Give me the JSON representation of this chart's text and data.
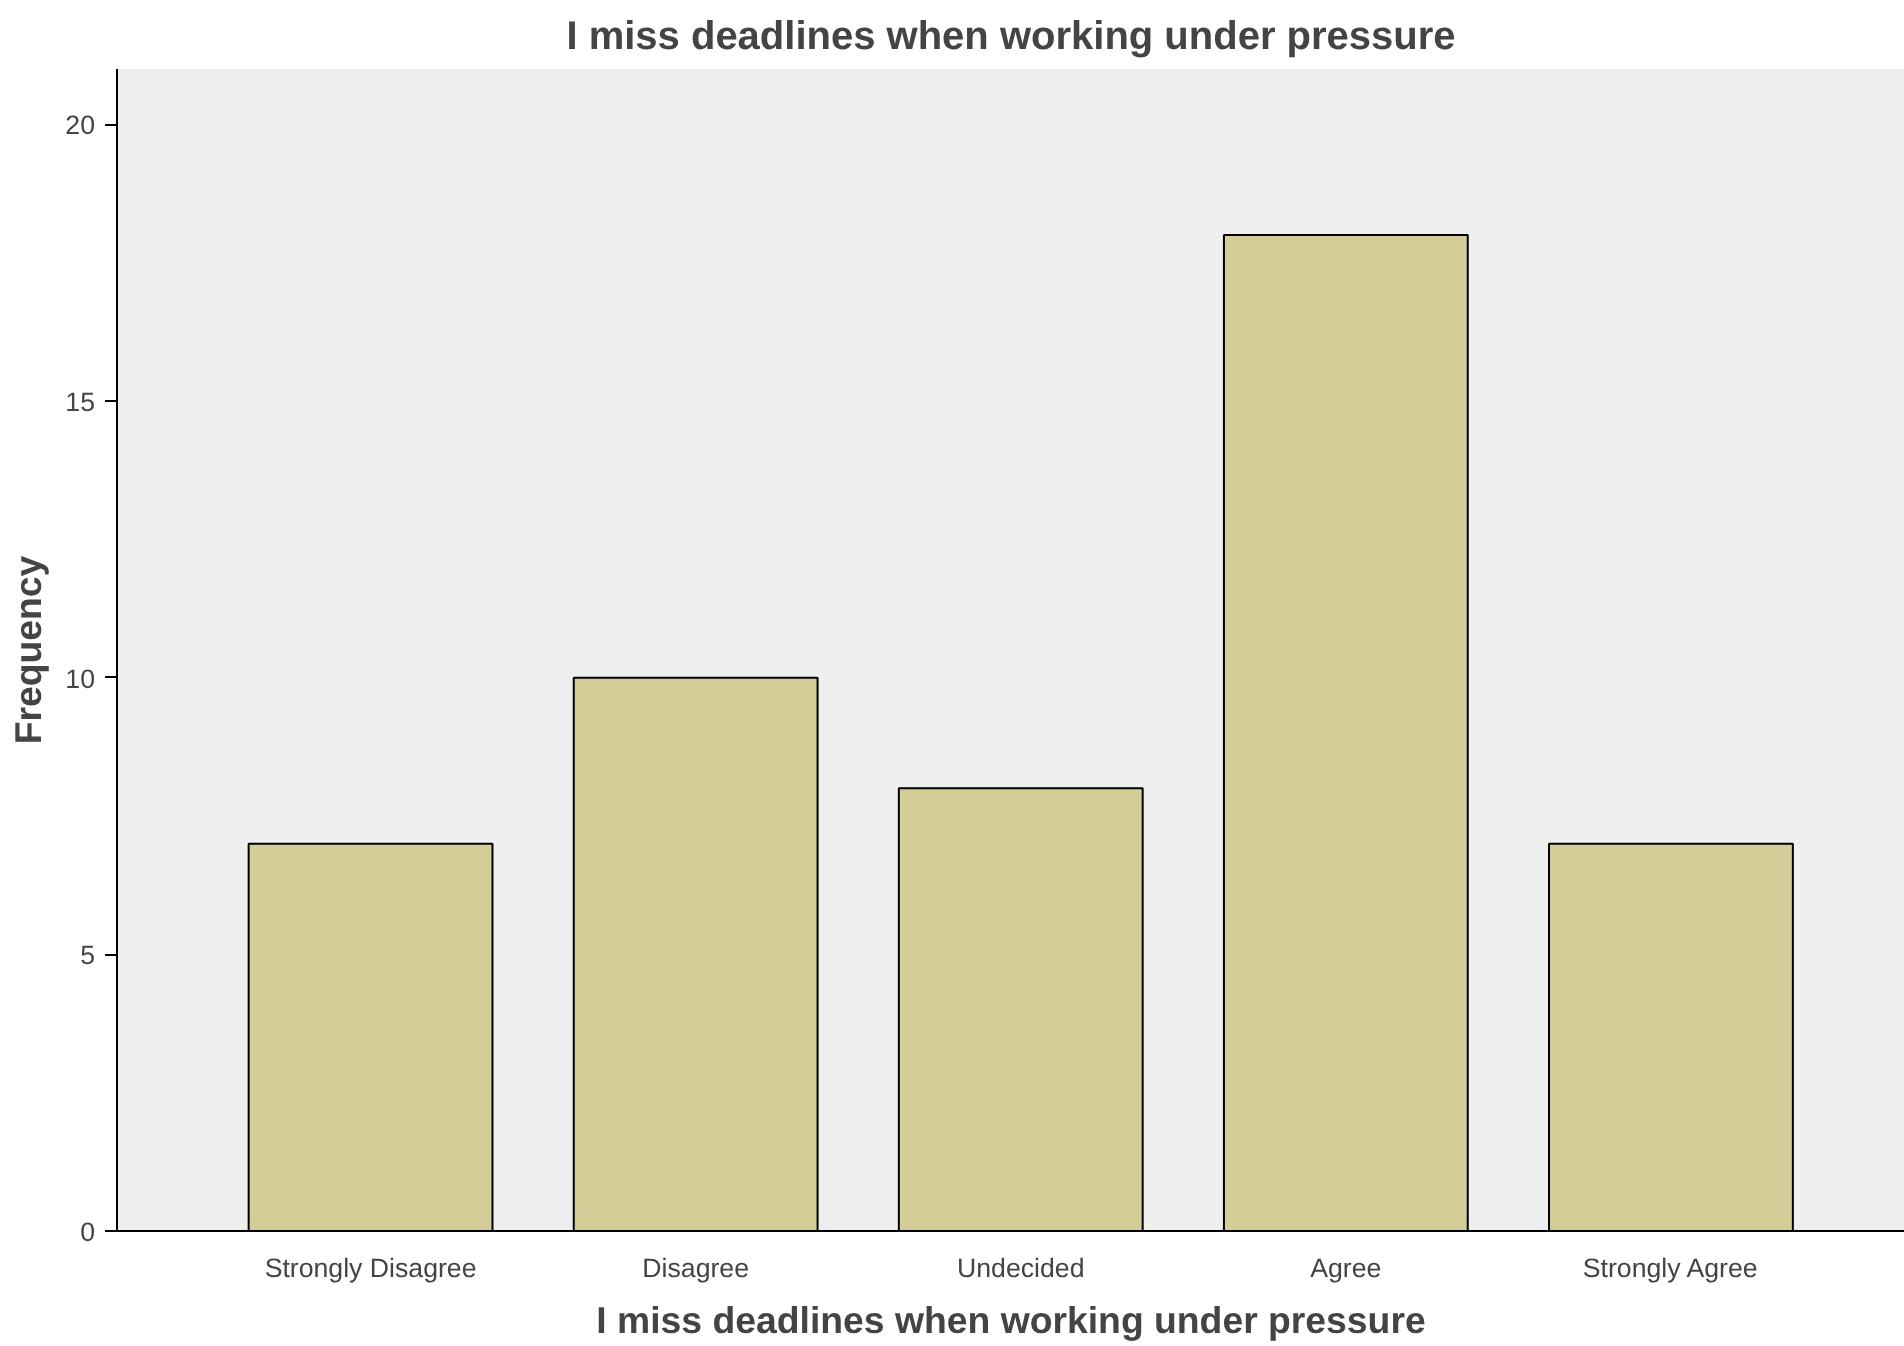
{
  "chart_data": {
    "type": "bar",
    "title": "I miss deadlines when working under pressure",
    "xlabel": "I miss deadlines when working under pressure",
    "ylabel": "Frequency",
    "categories": [
      "Strongly Disagree",
      "Disagree",
      "Undecided",
      "Agree",
      "Strongly Agree"
    ],
    "values": [
      7,
      10,
      8,
      18,
      7
    ],
    "color": "#d3ce97",
    "ylim": [
      0,
      21
    ],
    "yticks": [
      0,
      5,
      10,
      15,
      20
    ],
    "grid": false
  }
}
